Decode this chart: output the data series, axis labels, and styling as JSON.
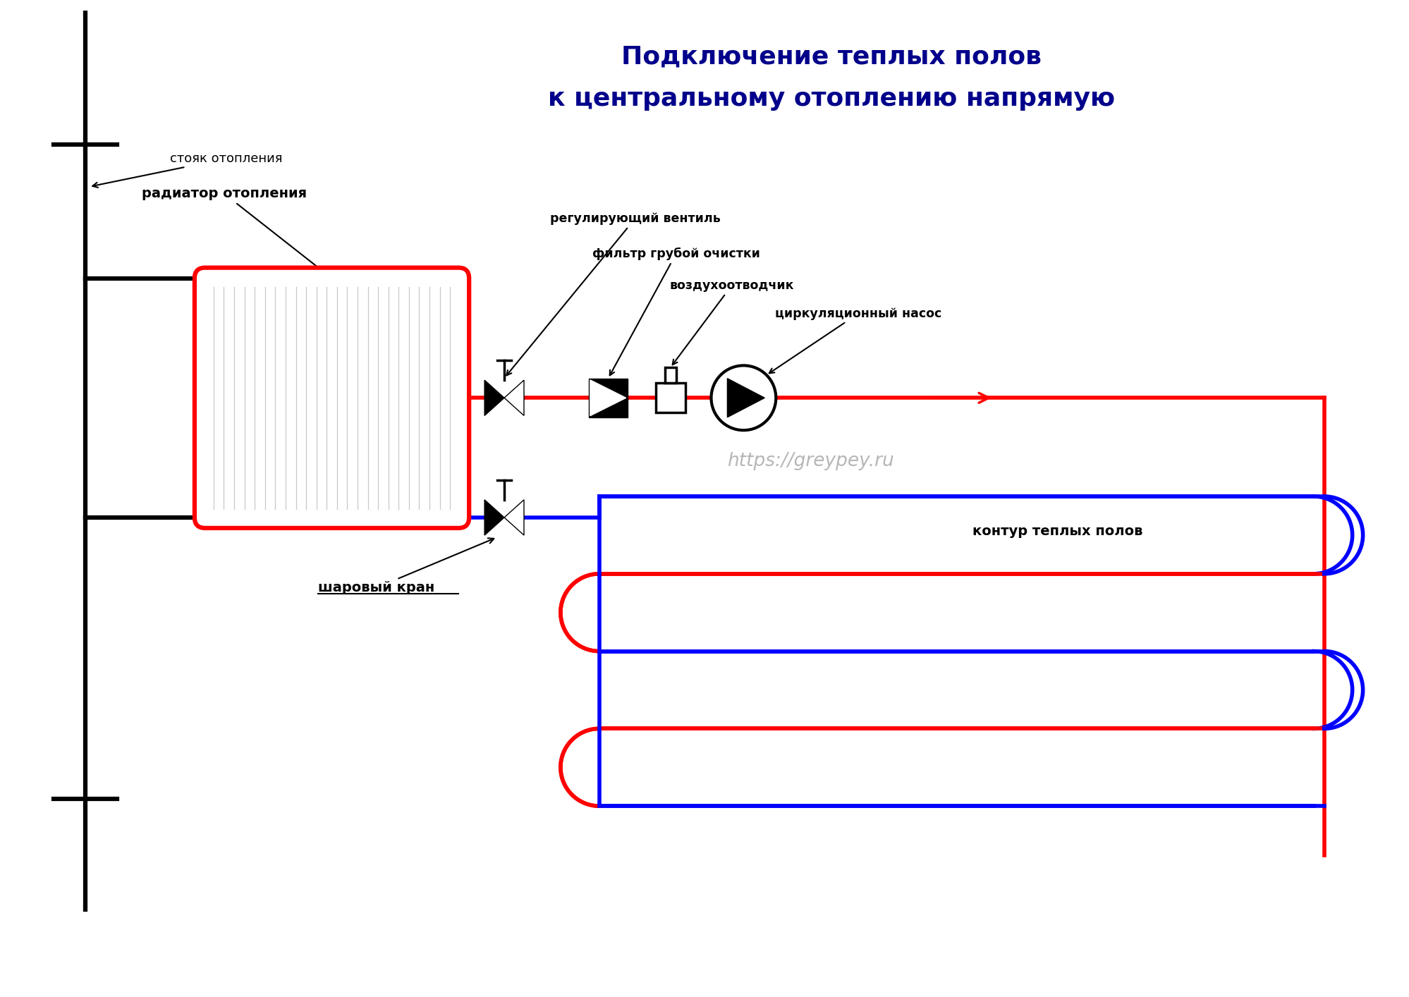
{
  "title_line1": "Подключение теплых полов",
  "title_line2": "к центральному отоплению напрямую",
  "title_color": "#00008B",
  "title_fontsize": 26,
  "bg_color": "#FFFFFF",
  "label_stoyak": "стояк отопления",
  "label_radiator": "радиатор отопления",
  "label_valve1": "регулирующий вентиль",
  "label_filter": "фильтр грубой очистки",
  "label_air": "воздухоотводчик",
  "label_pump": "циркуляционный насос",
  "label_ball_valve": "шаровый кран",
  "label_contour": "контур теплых полов",
  "watermark": "https://greypey.ru",
  "red": "#FF0000",
  "blue": "#0000FF",
  "black": "#000000",
  "gray": "#AAAAAA",
  "lw_pipe": 4.0,
  "lw_stoyak": 4.5,
  "lw_comp": 2.5
}
